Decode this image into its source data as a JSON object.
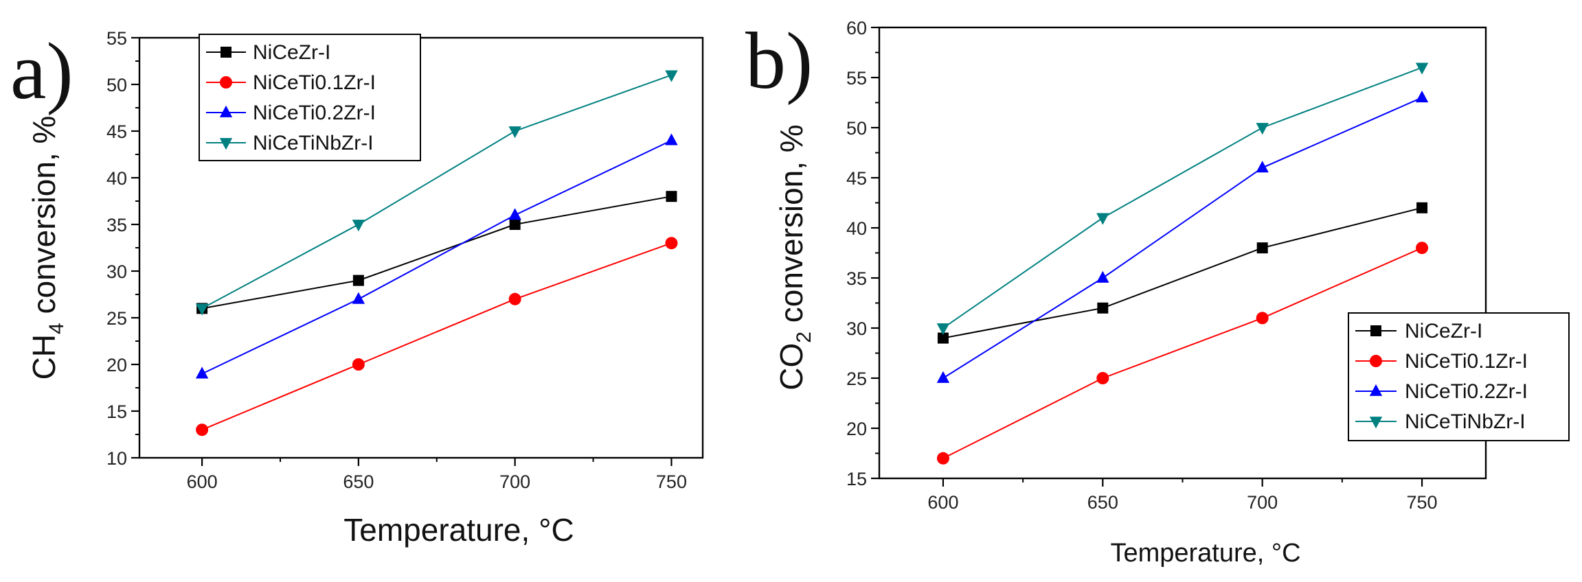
{
  "chart_data": [
    {
      "type": "line",
      "panel_label": "a)",
      "xlabel": "Temperature, °C",
      "ylabel_main": "CH",
      "ylabel_sub": "4",
      "ylabel_rest": " conversion, %",
      "x": [
        600,
        650,
        700,
        750
      ],
      "xlim": [
        580,
        760
      ],
      "ylim": [
        10,
        55
      ],
      "xticks": [
        600,
        650,
        700,
        750
      ],
      "yticks": [
        10,
        15,
        20,
        25,
        30,
        35,
        40,
        45,
        50,
        55
      ],
      "legend_position": "top-left",
      "series": [
        {
          "name": "NiCeZr-I",
          "color": "#000000",
          "marker": "square",
          "values": [
            26,
            29,
            35,
            38
          ]
        },
        {
          "name": "NiCeTi0.1Zr-I",
          "color": "#ff0000",
          "marker": "circle",
          "values": [
            13,
            20,
            27,
            33
          ]
        },
        {
          "name": "NiCeTi0.2Zr-I",
          "color": "#0000ff",
          "marker": "triangle-up",
          "values": [
            19,
            27,
            36,
            44
          ]
        },
        {
          "name": "NiCeTiNbZr-I",
          "color": "#008080",
          "marker": "triangle-down",
          "values": [
            26,
            35,
            45,
            51
          ]
        }
      ]
    },
    {
      "type": "line",
      "panel_label": "b)",
      "xlabel": "Temperature, °C",
      "ylabel_main": "CO",
      "ylabel_sub": "2",
      "ylabel_rest": " conversion, %",
      "x": [
        600,
        650,
        700,
        750
      ],
      "xlim": [
        580,
        770
      ],
      "ylim": [
        15,
        60
      ],
      "xticks": [
        600,
        650,
        700,
        750
      ],
      "yticks": [
        15,
        20,
        25,
        30,
        35,
        40,
        45,
        50,
        55,
        60
      ],
      "legend_position": "bottom-right",
      "series": [
        {
          "name": "NiCeZr-I",
          "color": "#000000",
          "marker": "square",
          "values": [
            29,
            32,
            38,
            42
          ]
        },
        {
          "name": "NiCeTi0.1Zr-I",
          "color": "#ff0000",
          "marker": "circle",
          "values": [
            17,
            25,
            31,
            38
          ]
        },
        {
          "name": "NiCeTi0.2Zr-I",
          "color": "#0000ff",
          "marker": "triangle-up",
          "values": [
            25,
            35,
            46,
            53
          ]
        },
        {
          "name": "NiCeTiNbZr-I",
          "color": "#008080",
          "marker": "triangle-down",
          "values": [
            30,
            41,
            50,
            56
          ]
        }
      ]
    }
  ]
}
